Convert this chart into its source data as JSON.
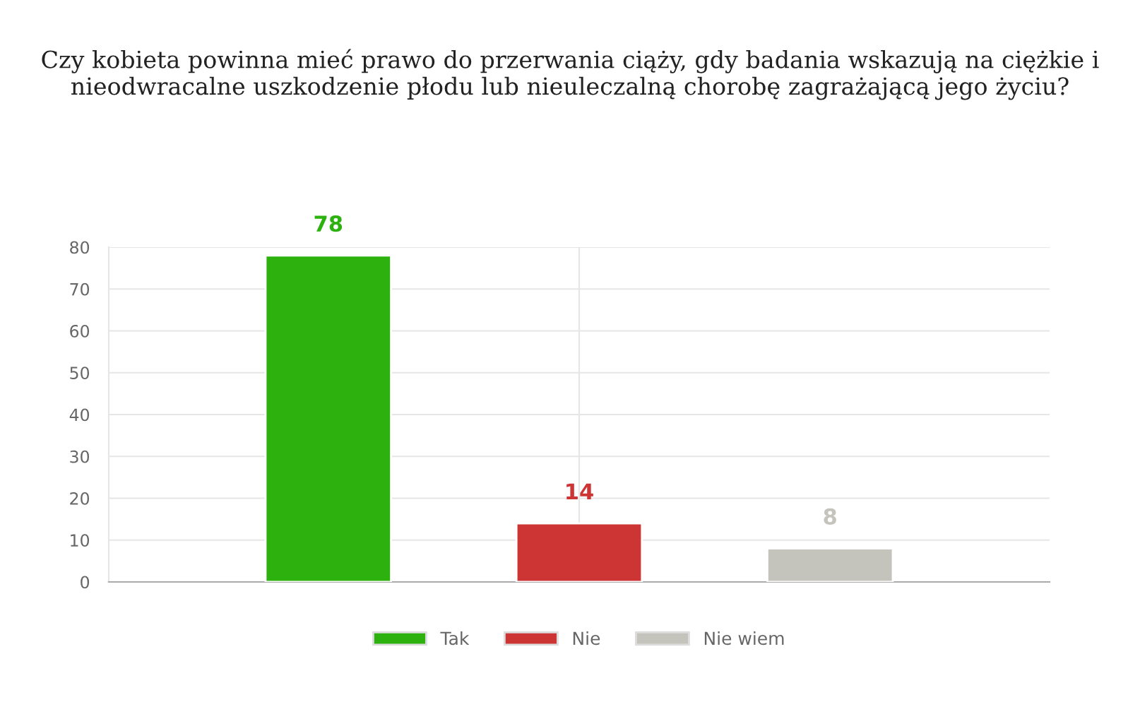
{
  "chart_data": {
    "type": "bar",
    "title": "Czy kobieta powinna mieć prawo do przerwania ciąży, gdy badania wskazują na ciężkie i nieodwracalne uszkodzenie płodu lub nieuleczalną chorobę zagrażającą jego życiu?",
    "categories": [
      null
    ],
    "series": [
      {
        "name": "Tak",
        "color": "#2cb10f",
        "values": [
          78
        ]
      },
      {
        "name": "Nie",
        "color": "#cd3434",
        "values": [
          14
        ]
      },
      {
        "name": "Nie wiem",
        "color": "#c5c4bc",
        "values": [
          8
        ]
      }
    ],
    "ylim": [
      0,
      80
    ],
    "yticks": [
      0,
      10,
      20,
      30,
      40,
      50,
      60,
      70,
      80
    ],
    "grid": true,
    "legend": "bottom",
    "data_labels": true
  }
}
